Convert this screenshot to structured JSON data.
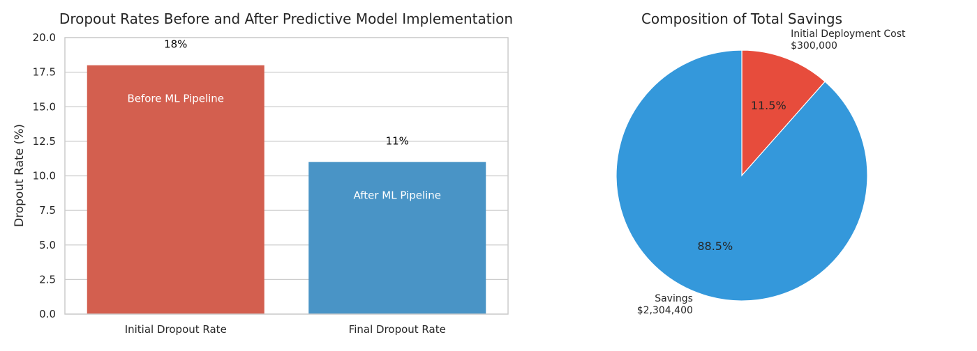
{
  "chart_data": [
    {
      "type": "bar",
      "title": "Dropout Rates Before and After Predictive Model Implementation",
      "xlabel": "",
      "ylabel": "Dropout Rate (%)",
      "ylim": [
        0,
        20
      ],
      "yticks": [
        "0.0",
        "2.5",
        "5.0",
        "7.5",
        "10.0",
        "12.5",
        "15.0",
        "17.5",
        "20.0"
      ],
      "grid": true,
      "categories": [
        "Initial Dropout Rate",
        "Final Dropout Rate"
      ],
      "values": [
        18,
        11
      ],
      "value_labels": [
        "18%",
        "11%"
      ],
      "bar_text": [
        "Before ML Pipeline",
        "After ML Pipeline"
      ],
      "colors": [
        "#d35f4f",
        "#4994c6"
      ]
    },
    {
      "type": "pie",
      "title": "Composition of Total Savings",
      "slices": [
        {
          "name": "Initial Deployment Cost",
          "value": 300000,
          "display_value": "$300,000",
          "percent": "11.5%",
          "color": "#e74c3c"
        },
        {
          "name": "Savings",
          "value": 2304400,
          "display_value": "$2,304,400",
          "percent": "88.5%",
          "color": "#3498db"
        }
      ],
      "start_angle_deg": 90,
      "direction": "clockwise"
    }
  ]
}
